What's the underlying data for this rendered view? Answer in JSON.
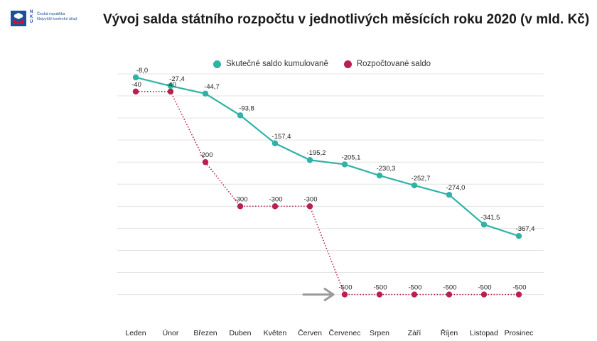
{
  "logo": {
    "letters": [
      "N",
      "K",
      "Ú"
    ],
    "subtitle_lines": [
      "Česká republika",
      "Nejvyšší kontrolní úřad"
    ]
  },
  "page": {
    "title": "Vývoj salda státního rozpočtu v jednotlivých měsících roku 2020 (v mld. Kč)"
  },
  "colors": {
    "actual": "#2fb3a6",
    "budget": "#b8214e",
    "grid": "#e3e3e3",
    "arrow": "#9a9a9a"
  },
  "chart_data": {
    "type": "line",
    "title": "Vývoj salda státního rozpočtu v jednotlivých měsících roku 2020 (v mld. Kč)",
    "categories": [
      "Leden",
      "Únor",
      "Březen",
      "Duben",
      "Květen",
      "Červen",
      "Červenec",
      "Srpen",
      "Září",
      "Říjen",
      "Listopad",
      "Prosinec"
    ],
    "series": [
      {
        "name": "Skutečné saldo kumulovaně",
        "style": "solid",
        "values": [
          -8.0,
          -27.4,
          -44.7,
          -93.8,
          -157.4,
          -195.2,
          -205.1,
          -230.3,
          -252.7,
          -274.0,
          -341.5,
          -367.4
        ],
        "labels": [
          "-8,0",
          "-27,4",
          "-44,7",
          "-93,8",
          "-157,4",
          "-195,2",
          "-205,1",
          "-230,3",
          "-252,7",
          "-274,0",
          "-341,5",
          "-367,4"
        ]
      },
      {
        "name": "Rozpočtované saldo",
        "style": "dotted-step",
        "values": [
          -40,
          -40,
          -200,
          -300,
          -300,
          -300,
          -500,
          -500,
          -500,
          -500,
          -500,
          -500
        ],
        "labels": [
          "-40",
          "-40",
          "-200",
          "-300",
          "-300",
          "-300",
          "-500",
          "-500",
          "-500",
          "-500",
          "-500",
          "-500"
        ]
      }
    ],
    "ylim": [
      -520,
      0
    ],
    "grid": true,
    "legend": "top-center",
    "annotations": [
      {
        "type": "arrow",
        "points_to": "Červenec",
        "series": "Rozpočtované saldo"
      }
    ]
  }
}
